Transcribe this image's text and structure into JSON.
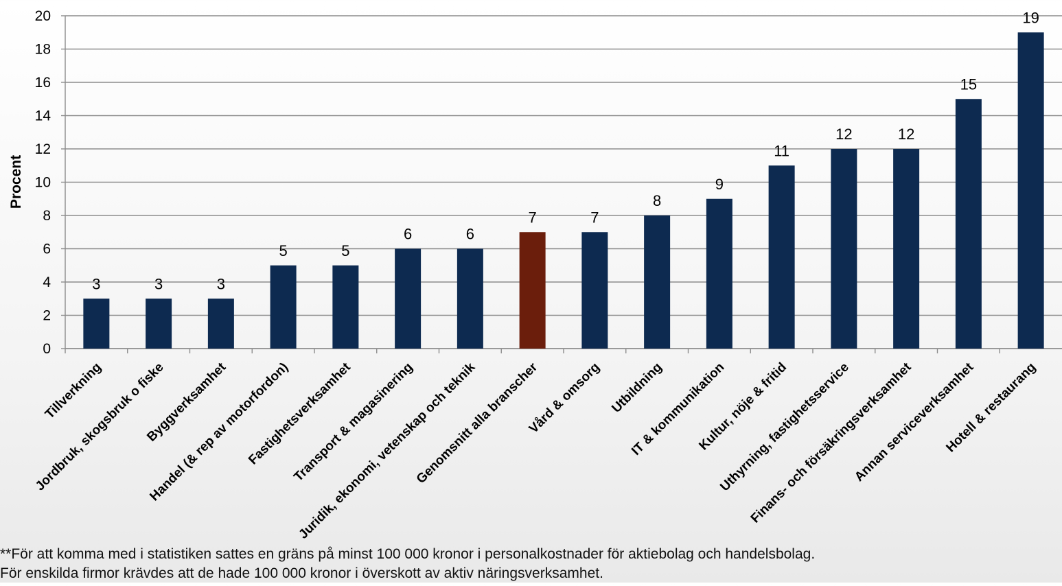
{
  "chart_data": {
    "type": "bar",
    "ylabel": "Procent",
    "ylim": [
      0,
      20
    ],
    "yticks": [
      0,
      2,
      4,
      6,
      8,
      10,
      12,
      14,
      16,
      18,
      20
    ],
    "grid": true,
    "bar_color": "#0d2a50",
    "highlight_color": "#6b1e0c",
    "highlight_index": 7,
    "categories": [
      "Tillverkning",
      "Jordbruk, skogsbruk o fiske",
      "Byggverksamhet",
      "Handel (& rep av motorfordon)",
      "Fastighetsverksamhet",
      "Transport & magasinering",
      "Juridik, ekonomi, vetenskap och teknik",
      "Genomsnitt alla branscher",
      "Vård & omsorg",
      "Utbildning",
      "IT & kommunikation",
      "Kultur, nöje & fritid",
      "Uthyrning, fastighetsservice",
      "Finans- och försäkringsverksamhet",
      "Annan serviceverksamhet",
      "Hotell & restaurang"
    ],
    "values": [
      3,
      3,
      3,
      5,
      5,
      6,
      6,
      7,
      7,
      8,
      9,
      11,
      12,
      12,
      15,
      19
    ]
  },
  "footnotes": [
    "**För att komma med i statistiken sattes en gräns på minst 100 000 kronor i personalkostnader för aktiebolag och handelsbolag.",
    "För enskilda firmor krävdes att de hade 100 000 kronor i överskott av aktiv näringsverksamhet."
  ]
}
